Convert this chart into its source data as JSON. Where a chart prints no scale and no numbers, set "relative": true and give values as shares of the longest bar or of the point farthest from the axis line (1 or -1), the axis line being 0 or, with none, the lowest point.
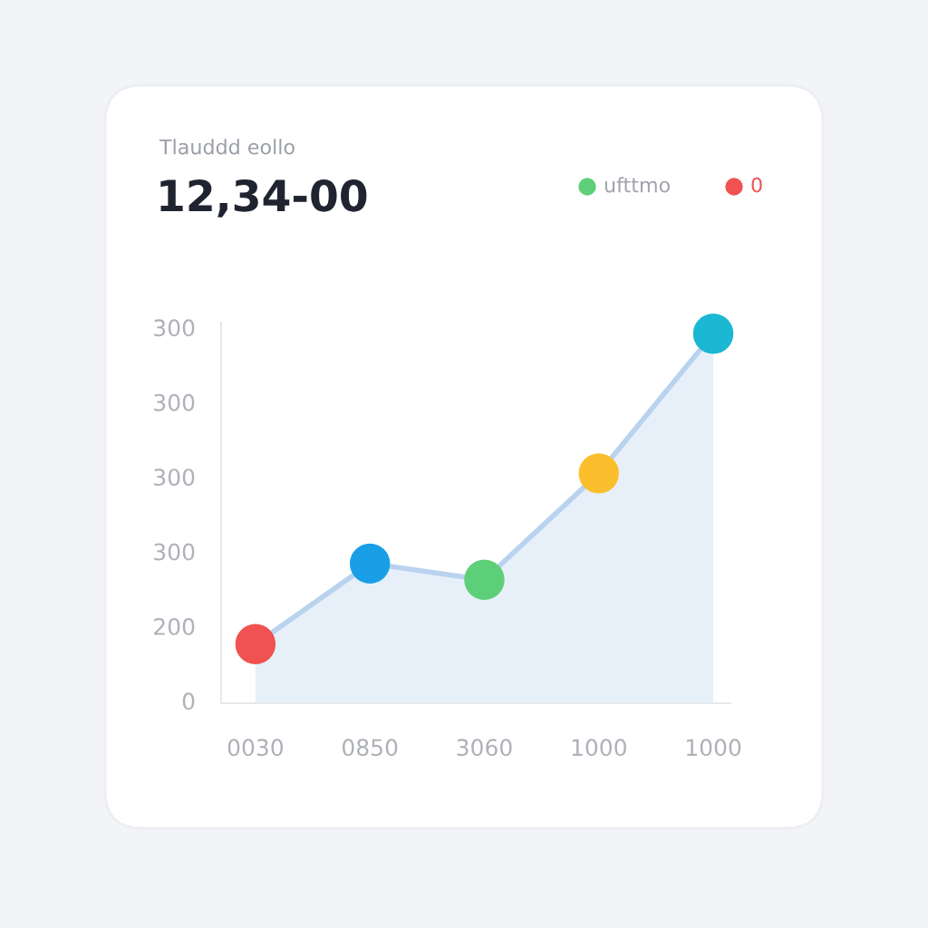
{
  "chart_data": {
    "type": "area",
    "subtitle": "Tlauddd eollo",
    "title": "12,34-00",
    "categories": [
      "0030",
      "0850",
      "3060",
      "1000",
      "1000"
    ],
    "series": [
      {
        "color": "#b9d3ef",
        "values": [
          0.16,
          0.378,
          0.334,
          0.622,
          1
        ],
        "colors": [
          "#f05252",
          "#1a9fe6",
          "#5dcf78",
          "#fbbf2e",
          "#1bb8d3"
        ]
      }
    ],
    "relative": true,
    "annotations": [
      "ufttmo",
      "0",
      "300",
      "300",
      "300",
      "300",
      "200",
      "0"
    ],
    "marker": "circle"
  }
}
